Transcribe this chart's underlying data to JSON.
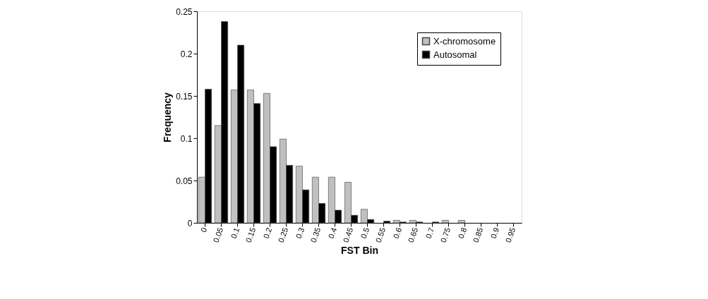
{
  "chart_data": {
    "type": "bar",
    "xlabel": "FST Bin",
    "ylabel": "Frequency",
    "categories": [
      "0",
      "0.05",
      "0.1",
      "0.15",
      "0.2",
      "0.25",
      "0.3",
      "0.35",
      "0.4",
      "0.45",
      "0.5",
      "0.55",
      "0.6",
      "0.65",
      "0.7",
      "0.75",
      "0.8",
      "0.85",
      "0.9",
      "0.95"
    ],
    "series": [
      {
        "name": "X-chromosome",
        "color": "#c0c0c0",
        "values": [
          0.054,
          0.115,
          0.157,
          0.157,
          0.153,
          0.099,
          0.067,
          0.054,
          0.054,
          0.048,
          0.016,
          0,
          0.003,
          0.003,
          0,
          0.003,
          0.003,
          0,
          0,
          0
        ]
      },
      {
        "name": "Autosomal",
        "color": "#000000",
        "values": [
          0.158,
          0.238,
          0.21,
          0.141,
          0.09,
          0.068,
          0.039,
          0.023,
          0.015,
          0.009,
          0.004,
          0.002,
          0.001,
          0.001,
          0.001,
          0,
          0,
          0,
          0,
          0
        ]
      }
    ],
    "ylim": [
      0,
      0.25
    ],
    "yticks": [
      0,
      0.05,
      0.1,
      0.15,
      0.2,
      0.25
    ],
    "grid": false,
    "legend": "top right"
  }
}
